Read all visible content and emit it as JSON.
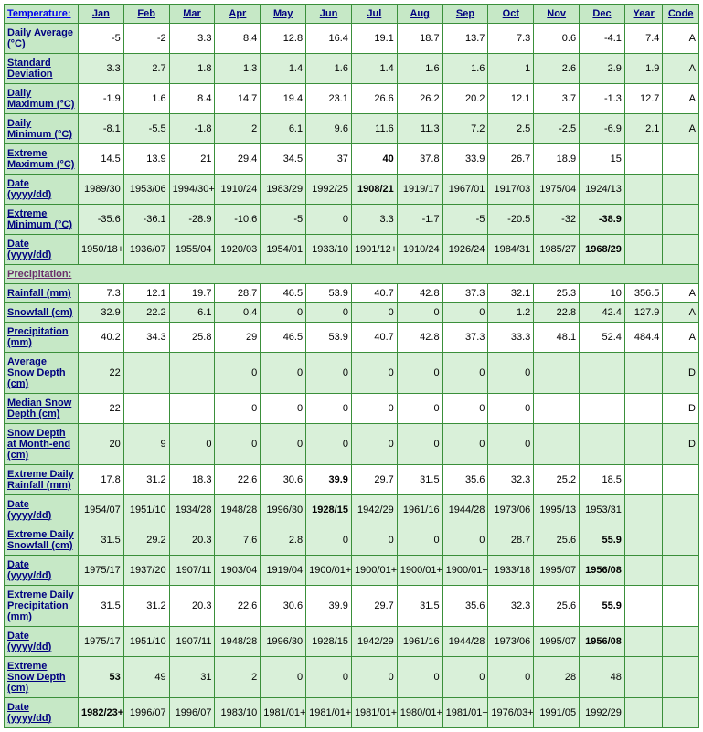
{
  "columns": [
    "Jan",
    "Feb",
    "Mar",
    "Apr",
    "May",
    "Jun",
    "Jul",
    "Aug",
    "Sep",
    "Oct",
    "Nov",
    "Dec",
    "Year",
    "Code"
  ],
  "sections": {
    "temperature": "Temperature:",
    "precipitation": "Precipitation:"
  },
  "rows": [
    {
      "id": "daily-average",
      "section": "temperature",
      "label": "Daily Average (°C)",
      "shade": false,
      "vals": [
        "-5",
        "-2",
        "3.3",
        "8.4",
        "12.8",
        "16.4",
        "19.1",
        "18.7",
        "13.7",
        "7.3",
        "0.6",
        "-4.1",
        "7.4",
        "A"
      ]
    },
    {
      "id": "std-dev",
      "section": "temperature",
      "label": "Standard Deviation",
      "shade": true,
      "vals": [
        "3.3",
        "2.7",
        "1.8",
        "1.3",
        "1.4",
        "1.6",
        "1.4",
        "1.6",
        "1.6",
        "1",
        "2.6",
        "2.9",
        "1.9",
        "A"
      ]
    },
    {
      "id": "daily-max",
      "section": "temperature",
      "label": "Daily Maximum (°C)",
      "shade": false,
      "vals": [
        "-1.9",
        "1.6",
        "8.4",
        "14.7",
        "19.4",
        "23.1",
        "26.6",
        "26.2",
        "20.2",
        "12.1",
        "3.7",
        "-1.3",
        "12.7",
        "A"
      ]
    },
    {
      "id": "daily-min",
      "section": "temperature",
      "label": "Daily Minimum (°C)",
      "shade": true,
      "vals": [
        "-8.1",
        "-5.5",
        "-1.8",
        "2",
        "6.1",
        "9.6",
        "11.6",
        "11.3",
        "7.2",
        "2.5",
        "-2.5",
        "-6.9",
        "2.1",
        "A"
      ]
    },
    {
      "id": "ext-max",
      "section": "temperature",
      "label": "Extreme Maximum (°C)",
      "shade": false,
      "vals": [
        "14.5",
        "13.9",
        "21",
        "29.4",
        "34.5",
        "37",
        "40",
        "37.8",
        "33.9",
        "26.7",
        "18.9",
        "15",
        "",
        ""
      ],
      "bold": [
        6
      ]
    },
    {
      "id": "ext-max-date",
      "section": "temperature",
      "label": "Date (yyyy/dd)",
      "shade": true,
      "vals": [
        "1989/30",
        "1953/06",
        "1994/30+",
        "1910/24",
        "1983/29",
        "1992/25",
        "1908/21",
        "1919/17",
        "1967/01",
        "1917/03",
        "1975/04",
        "1924/13",
        "",
        ""
      ],
      "bold": [
        6
      ]
    },
    {
      "id": "ext-min",
      "section": "temperature",
      "label": "Extreme Minimum (°C)",
      "shade": true,
      "vals": [
        "-35.6",
        "-36.1",
        "-28.9",
        "-10.6",
        "-5",
        "0",
        "3.3",
        "-1.7",
        "-5",
        "-20.5",
        "-32",
        "-38.9",
        "",
        ""
      ],
      "bold": [
        11
      ]
    },
    {
      "id": "ext-min-date",
      "section": "temperature",
      "label": "Date (yyyy/dd)",
      "shade": true,
      "vals": [
        "1950/18+",
        "1936/07",
        "1955/04",
        "1920/03",
        "1954/01",
        "1933/10",
        "1901/12+",
        "1910/24",
        "1926/24",
        "1984/31",
        "1985/27",
        "1968/29",
        "",
        ""
      ],
      "bold": [
        11
      ]
    },
    {
      "id": "rainfall",
      "section": "precipitation",
      "label": "Rainfall (mm)",
      "shade": false,
      "vals": [
        "7.3",
        "12.1",
        "19.7",
        "28.7",
        "46.5",
        "53.9",
        "40.7",
        "42.8",
        "37.3",
        "32.1",
        "25.3",
        "10",
        "356.5",
        "A"
      ]
    },
    {
      "id": "snowfall",
      "section": "precipitation",
      "label": "Snowfall (cm)",
      "shade": true,
      "vals": [
        "32.9",
        "22.2",
        "6.1",
        "0.4",
        "0",
        "0",
        "0",
        "0",
        "0",
        "1.2",
        "22.8",
        "42.4",
        "127.9",
        "A"
      ]
    },
    {
      "id": "precip",
      "section": "precipitation",
      "label": "Precipitation (mm)",
      "shade": false,
      "vals": [
        "40.2",
        "34.3",
        "25.8",
        "29",
        "46.5",
        "53.9",
        "40.7",
        "42.8",
        "37.3",
        "33.3",
        "48.1",
        "52.4",
        "484.4",
        "A"
      ]
    },
    {
      "id": "avg-snow-depth",
      "section": "precipitation",
      "label": "Average Snow Depth (cm)",
      "shade": true,
      "vals": [
        "22",
        "",
        "",
        "0",
        "0",
        "0",
        "0",
        "0",
        "0",
        "0",
        "",
        "",
        "",
        "D"
      ]
    },
    {
      "id": "med-snow-depth",
      "section": "precipitation",
      "label": "Median Snow Depth (cm)",
      "shade": false,
      "vals": [
        "22",
        "",
        "",
        "0",
        "0",
        "0",
        "0",
        "0",
        "0",
        "0",
        "",
        "",
        "",
        "D"
      ]
    },
    {
      "id": "snow-depth-eom",
      "section": "precipitation",
      "label": "Snow Depth at Month-end (cm)",
      "shade": true,
      "vals": [
        "20",
        "9",
        "0",
        "0",
        "0",
        "0",
        "0",
        "0",
        "0",
        "0",
        "",
        "",
        "",
        "D"
      ]
    },
    {
      "id": "ext-daily-rain",
      "section": "precipitation",
      "label": "Extreme Daily Rainfall (mm)",
      "shade": false,
      "vals": [
        "17.8",
        "31.2",
        "18.3",
        "22.6",
        "30.6",
        "39.9",
        "29.7",
        "31.5",
        "35.6",
        "32.3",
        "25.2",
        "18.5",
        "",
        ""
      ],
      "bold": [
        5
      ]
    },
    {
      "id": "ext-daily-rain-date",
      "section": "precipitation",
      "label": "Date (yyyy/dd)",
      "shade": true,
      "vals": [
        "1954/07",
        "1951/10",
        "1934/28",
        "1948/28",
        "1996/30",
        "1928/15",
        "1942/29",
        "1961/16",
        "1944/28",
        "1973/06",
        "1995/13",
        "1953/31",
        "",
        ""
      ],
      "bold": [
        5
      ]
    },
    {
      "id": "ext-daily-snow",
      "section": "precipitation",
      "label": "Extreme Daily Snowfall (cm)",
      "shade": true,
      "vals": [
        "31.5",
        "29.2",
        "20.3",
        "7.6",
        "2.8",
        "0",
        "0",
        "0",
        "0",
        "28.7",
        "25.6",
        "55.9",
        "",
        ""
      ],
      "bold": [
        11
      ]
    },
    {
      "id": "ext-daily-snow-date",
      "section": "precipitation",
      "label": "Date (yyyy/dd)",
      "shade": true,
      "vals": [
        "1975/17",
        "1937/20",
        "1907/11",
        "1903/04",
        "1919/04",
        "1900/01+",
        "1900/01+",
        "1900/01+",
        "1900/01+",
        "1933/18",
        "1995/07",
        "1956/08",
        "",
        ""
      ],
      "bold": [
        11
      ]
    },
    {
      "id": "ext-daily-precip",
      "section": "precipitation",
      "label": "Extreme Daily Precipitation (mm)",
      "shade": false,
      "vals": [
        "31.5",
        "31.2",
        "20.3",
        "22.6",
        "30.6",
        "39.9",
        "29.7",
        "31.5",
        "35.6",
        "32.3",
        "25.6",
        "55.9",
        "",
        ""
      ],
      "bold": [
        11
      ]
    },
    {
      "id": "ext-daily-precip-date",
      "section": "precipitation",
      "label": "Date (yyyy/dd)",
      "shade": true,
      "vals": [
        "1975/17",
        "1951/10",
        "1907/11",
        "1948/28",
        "1996/30",
        "1928/15",
        "1942/29",
        "1961/16",
        "1944/28",
        "1973/06",
        "1995/07",
        "1956/08",
        "",
        ""
      ],
      "bold": [
        11
      ]
    },
    {
      "id": "ext-snow-depth",
      "section": "precipitation",
      "label": "Extreme Snow Depth (cm)",
      "shade": true,
      "vals": [
        "53",
        "49",
        "31",
        "2",
        "0",
        "0",
        "0",
        "0",
        "0",
        "0",
        "28",
        "48",
        "",
        ""
      ],
      "bold": [
        0
      ]
    },
    {
      "id": "ext-snow-depth-date",
      "section": "precipitation",
      "label": "Date (yyyy/dd)",
      "shade": true,
      "vals": [
        "1982/23+",
        "1996/07",
        "1996/07",
        "1983/10",
        "1981/01+",
        "1981/01+",
        "1981/01+",
        "1980/01+",
        "1981/01+",
        "1976/03+",
        "1991/05",
        "1992/29",
        "",
        ""
      ],
      "bold": [
        0
      ]
    }
  ],
  "colors": {
    "header_bg": "#c6e8c6",
    "shade_bg": "#d9f0d9",
    "plain_bg": "#ffffff",
    "border": "#3a8f3a",
    "header_text": "#000080",
    "section_text": "#6b2f6b"
  }
}
